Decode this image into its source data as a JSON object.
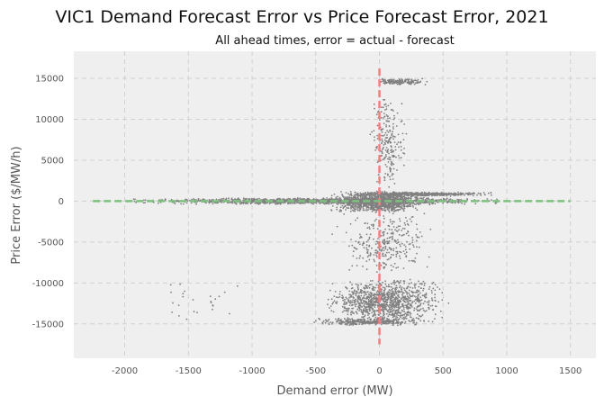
{
  "chart_data": {
    "type": "scatter",
    "title": "VIC1 Demand Forecast Error vs Price Forecast Error, 2021",
    "subtitle": "All ahead times, error = actual - forecast",
    "xlabel": "Demand error (MW)",
    "ylabel": "Price Error ($/MW/h)",
    "xlim": [
      -2400,
      1700
    ],
    "ylim": [
      -19200,
      18300
    ],
    "x_ticks": [
      -2000,
      -1500,
      -1000,
      -500,
      0,
      500,
      1000,
      1500
    ],
    "y_ticks": [
      -15000,
      -10000,
      -5000,
      0,
      5000,
      10000,
      15000
    ],
    "grid": true,
    "reference_lines": [
      {
        "orientation": "vertical",
        "value": 0,
        "y_range": [
          -17500,
          16200
        ],
        "color": "#f08080",
        "style": "dashed"
      },
      {
        "orientation": "horizontal",
        "value": 0,
        "x_range": [
          -2250,
          1500
        ],
        "color": "#7ec07e",
        "style": "dashed"
      }
    ],
    "point_color": "#808080",
    "point_clusters": [
      {
        "x_range": [
          -2200,
          1300
        ],
        "y_range": [
          -400,
          400
        ],
        "count": 1400
      },
      {
        "x_range": [
          -450,
          450
        ],
        "y_range": [
          -1400,
          1300
        ],
        "count": 1200
      },
      {
        "x_range": [
          -350,
          1000
        ],
        "y_range": [
          600,
          1100
        ],
        "count": 500
      },
      {
        "x_range": [
          -500,
          600
        ],
        "y_range": [
          -15000,
          -9500
        ],
        "count": 1100
      },
      {
        "x_range": [
          -600,
          450
        ],
        "y_range": [
          -15200,
          -14300
        ],
        "count": 350
      },
      {
        "x_range": [
          -400,
          500
        ],
        "y_range": [
          -9000,
          -1200
        ],
        "count": 300
      },
      {
        "x_range": [
          -80,
          400
        ],
        "y_range": [
          14200,
          15000
        ],
        "count": 160
      },
      {
        "x_range": [
          -100,
          250
        ],
        "y_range": [
          1500,
          13000
        ],
        "count": 220
      },
      {
        "x_range": [
          -2100,
          -700
        ],
        "y_range": [
          -15200,
          -9000
        ],
        "count": 25
      }
    ]
  }
}
